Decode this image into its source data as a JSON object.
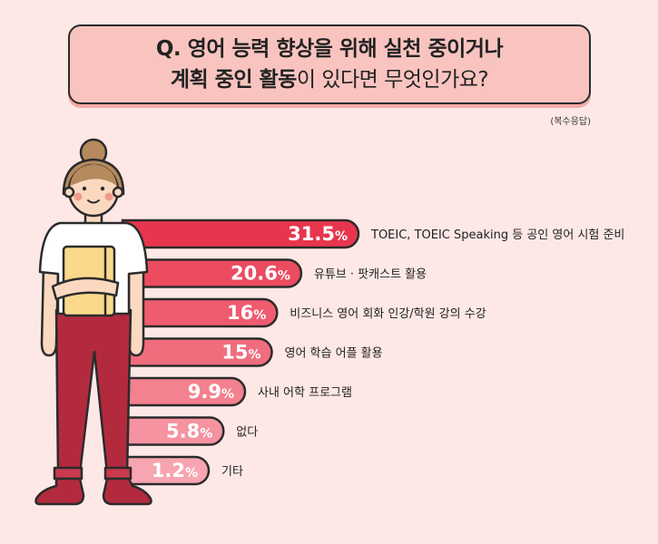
{
  "header": {
    "title_line1": "Q. 영어 능력 향상을 위해 실천 중이거나",
    "title_line2_bold": "계획 중인 활동",
    "title_line2_rest": "이 있다면 무엇인가요?",
    "note": "(복수응답)"
  },
  "colors": {
    "background": "#fde8e6",
    "title_fill": "#f9c4c0",
    "bar_colors": [
      "#e8354e",
      "#ec4b60",
      "#ef5c70",
      "#f06d7e",
      "#f3818f",
      "#f593a0",
      "#f7a6b1"
    ]
  },
  "chart_data": {
    "type": "bar",
    "orientation": "horizontal",
    "categories": [
      "TOEIC, TOEIC Speaking 등 공인 영어 시험 준비",
      "유튜브 · 팟캐스트 활용",
      "비즈니스 영어 회화 인강/학원 강의 수강",
      "영어 학습 어플 활용",
      "사내 어학 프로그램",
      "없다",
      "기타"
    ],
    "values": [
      31.5,
      20.6,
      16,
      15,
      9.9,
      5.8,
      1.2
    ],
    "value_labels": [
      "31.5",
      "20.6",
      "16",
      "15",
      "9.9",
      "5.8",
      "1.2"
    ],
    "unit": "%"
  }
}
